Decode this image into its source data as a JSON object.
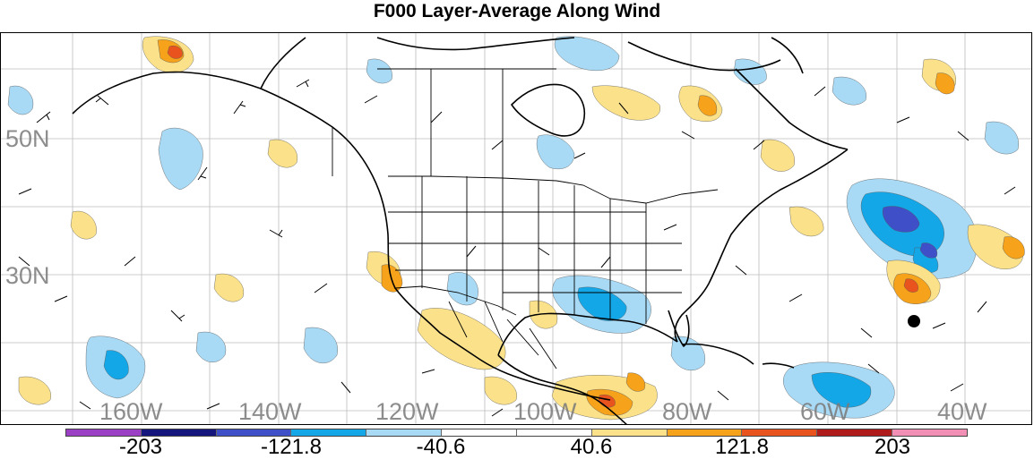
{
  "title": "F000 Layer-Average Along Wind",
  "map": {
    "lat_labels": [
      "50N",
      "30N"
    ],
    "lon_labels": [
      "160W",
      "140W",
      "120W",
      "100W",
      "80W",
      "60W",
      "40W"
    ]
  },
  "colorbar": {
    "colors": [
      "#9b3fc4",
      "#15157e",
      "#3e4fc8",
      "#13a7e8",
      "#a9daf5",
      "#ffffff",
      "#ffffff",
      "#fbe28a",
      "#f6a21a",
      "#e9531d",
      "#b01c1c",
      "#f28fb4"
    ],
    "labels": [
      "-203",
      "-121.8",
      "-40.6",
      "40.6",
      "121.8",
      "203"
    ]
  }
}
